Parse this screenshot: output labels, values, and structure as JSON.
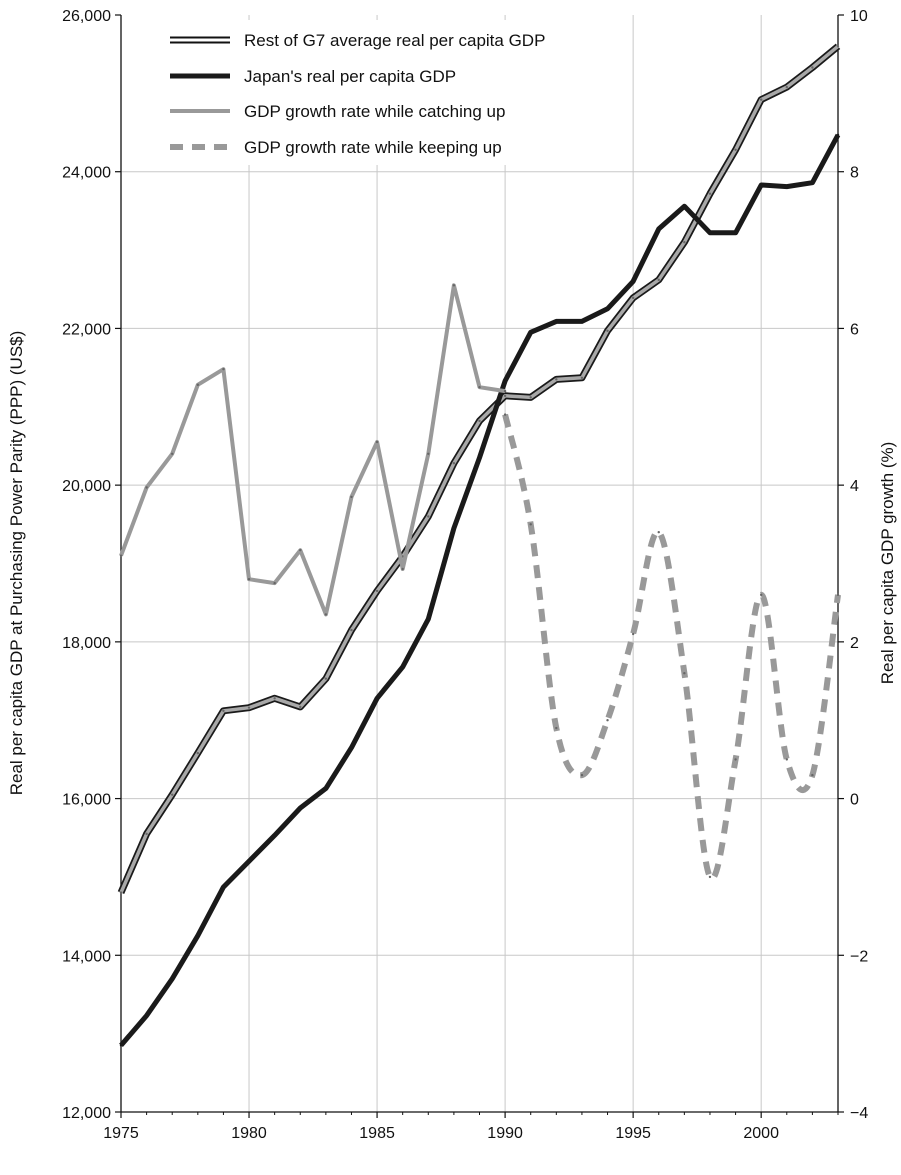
{
  "chart_data": {
    "type": "line",
    "title": "",
    "xlabel": "",
    "ylabel": "Real per capita GDP at Purchasing Power Parity (PPP) (US$)",
    "y2label": "Real per capita GDP growth (%)",
    "xlim": [
      1975,
      2003
    ],
    "ylim": [
      12000,
      26000
    ],
    "y2lim": [
      -4,
      10
    ],
    "x_ticks": [
      1975,
      1980,
      1985,
      1990,
      1995,
      2000
    ],
    "y_ticks": [
      12000,
      14000,
      16000,
      18000,
      20000,
      22000,
      24000,
      26000
    ],
    "y2_ticks": [
      -4,
      -2,
      0,
      2,
      4,
      6,
      8,
      10
    ],
    "x_tick_labels": [
      "1975",
      "1980",
      "1985",
      "1990",
      "1995",
      "2000"
    ],
    "y_tick_labels": [
      "12,000",
      "14,000",
      "16,000",
      "18,000",
      "20,000",
      "22,000",
      "24,000",
      "26,000"
    ],
    "y2_tick_labels": [
      "−4",
      "−2",
      "0",
      "2",
      "4",
      "6",
      "8",
      "10"
    ],
    "grid": "vertical",
    "legend_position": "top-left",
    "series": [
      {
        "name": "Rest of G7 average real per capita GDP",
        "axis": "left",
        "style": "outlined",
        "x": [
          1975,
          1976,
          1977,
          1978,
          1979,
          1980,
          1981,
          1982,
          1983,
          1984,
          1985,
          1986,
          1987,
          1988,
          1989,
          1990,
          1991,
          1992,
          1993,
          1994,
          1995,
          1996,
          1997,
          1998,
          1999,
          2000,
          2001,
          2002,
          2003
        ],
        "y": [
          14800,
          15550,
          16050,
          16580,
          17120,
          17160,
          17280,
          17170,
          17530,
          18150,
          18650,
          19090,
          19600,
          20280,
          20820,
          21140,
          21120,
          21350,
          21370,
          21970,
          22390,
          22620,
          23100,
          23720,
          24280,
          24920,
          25080,
          25330,
          25600
        ]
      },
      {
        "name": "Japan's real per capita GDP",
        "axis": "left",
        "style": "solid-black",
        "x": [
          1975,
          1976,
          1977,
          1978,
          1979,
          1980,
          1981,
          1982,
          1983,
          1984,
          1985,
          1986,
          1987,
          1988,
          1989,
          1990,
          1991,
          1992,
          1993,
          1994,
          1995,
          1996,
          1997,
          1998,
          1999,
          2000,
          2001,
          2002,
          2003
        ],
        "y": [
          12850,
          13230,
          13700,
          14250,
          14870,
          15200,
          15530,
          15880,
          16130,
          16650,
          17280,
          17680,
          18290,
          19450,
          20350,
          21330,
          21950,
          22090,
          22090,
          22250,
          22600,
          23270,
          23560,
          23220,
          23220,
          23830,
          23810,
          23860,
          24470
        ]
      },
      {
        "name": "GDP growth rate while catching up",
        "axis": "right",
        "style": "solid-gray",
        "x": [
          1975,
          1976,
          1977,
          1978,
          1979,
          1980,
          1981,
          1982,
          1983,
          1984,
          1985,
          1986,
          1987,
          1988,
          1989,
          1990
        ],
        "y": [
          3.1,
          3.97,
          4.4,
          5.28,
          5.48,
          2.8,
          2.75,
          3.17,
          2.35,
          3.85,
          4.55,
          2.93,
          4.4,
          6.55,
          5.25,
          5.2
        ]
      },
      {
        "name": "GDP growth rate while keeping up",
        "axis": "right",
        "style": "dashed-gray",
        "x": [
          1990,
          1991,
          1992,
          1993,
          1994,
          1995,
          1996,
          1997,
          1998,
          1999,
          2000,
          2001,
          2002,
          2003
        ],
        "y": [
          4.9,
          3.5,
          0.9,
          0.3,
          1.0,
          2.1,
          3.4,
          1.6,
          -1.0,
          0.5,
          2.6,
          0.5,
          0.3,
          2.6
        ]
      }
    ]
  }
}
